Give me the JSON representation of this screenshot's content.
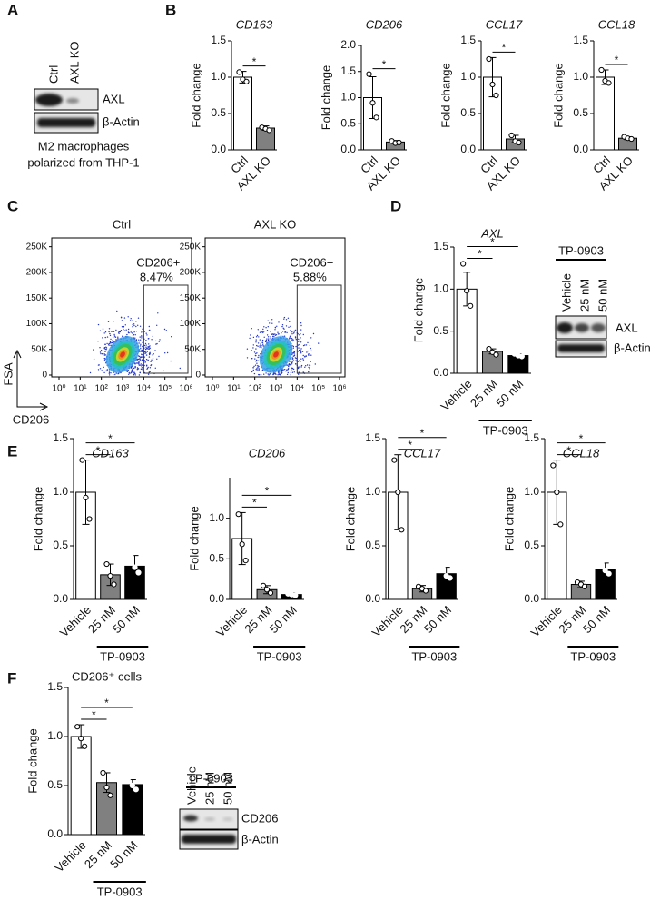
{
  "panel_labels": [
    "A",
    "B",
    "C",
    "D",
    "E",
    "F"
  ],
  "blot_a": {
    "lanes": [
      "Ctrl",
      "AXL KO"
    ],
    "bands": [
      "AXL",
      "β-Actin"
    ],
    "caption": [
      "M2 macrophages",
      "polarized from THP-1"
    ]
  },
  "flow": {
    "y_label": "FSA",
    "x_label": "CD206",
    "log_x": true,
    "xlim": [
      1,
      1000000
    ],
    "ylim": [
      0,
      260000
    ],
    "xticks": [
      {
        "value": 1,
        "label": "10⁰"
      },
      {
        "value": 10,
        "label": "10¹"
      },
      {
        "value": 100,
        "label": "10²"
      },
      {
        "value": 1000,
        "label": "10³"
      },
      {
        "value": 10000,
        "label": "10⁴"
      },
      {
        "value": 100000,
        "label": "10⁵"
      },
      {
        "value": 1000000,
        "label": "10⁶"
      }
    ],
    "yticks": [
      0,
      {
        "value": 50000,
        "label": "50K"
      },
      {
        "value": 100000,
        "label": "100K"
      },
      {
        "value": 150000,
        "label": "150K"
      },
      {
        "value": 200000,
        "label": "200K"
      },
      {
        "value": 250000,
        "label": "250K"
      }
    ],
    "plots": [
      {
        "title": "Ctrl",
        "gate": "CD206+",
        "percent": "8.47%"
      },
      {
        "title": "AXL KO",
        "gate": "CD206+",
        "percent": "5.88%"
      }
    ]
  },
  "blot_d": {
    "treatment": "TP-0903",
    "lanes": [
      "Vehicle",
      "25 nM",
      "50 nM"
    ],
    "bands": [
      "AXL",
      "β-Actin"
    ]
  },
  "blot_f": {
    "treatment": "TP-0903",
    "lanes": [
      "Vehicle",
      "25 nM",
      "50 nM"
    ],
    "bands": [
      "CD206",
      "β-Actin"
    ]
  },
  "chart_data": [
    {
      "type": "bar",
      "title": "CD163",
      "italic_title": true,
      "ylabel": "Fold change",
      "categories": [
        "Ctrl",
        "AXL KO"
      ],
      "values": [
        1.0,
        0.3
      ],
      "errors": [
        0.08,
        0.03
      ],
      "points": [
        [
          1.07,
          0.97,
          0.94
        ],
        [
          0.31,
          0.29,
          0.27
        ]
      ],
      "colors": [
        "#ffffff",
        "#808080"
      ],
      "ylim": [
        0,
        1.5
      ],
      "yticks": [
        {
          "value": 0,
          "label": "0.0"
        },
        0.5,
        {
          "value": 1,
          "label": "1.0"
        },
        1.5
      ],
      "significance": [
        "*"
      ]
    },
    {
      "type": "bar",
      "title": "CD206",
      "italic_title": true,
      "ylabel": "Fold change",
      "categories": [
        "Ctrl",
        "AXL KO"
      ],
      "values": [
        1.0,
        0.15
      ],
      "errors": [
        0.4,
        0.03
      ],
      "points": [
        [
          1.45,
          0.9,
          0.62
        ],
        [
          0.17,
          0.13,
          0.14
        ]
      ],
      "colors": [
        "#ffffff",
        "#808080"
      ],
      "ylim": [
        0,
        2
      ],
      "yticks": [
        {
          "value": 0,
          "label": "0.0"
        },
        0.5,
        {
          "value": 1,
          "label": "1.0"
        },
        1.5,
        {
          "value": 2,
          "label": "2.0"
        }
      ],
      "significance": [
        "*"
      ]
    },
    {
      "type": "bar",
      "title": "CCL17",
      "italic_title": true,
      "ylabel": "Fold change",
      "categories": [
        "Ctrl",
        "AXL KO"
      ],
      "values": [
        1.0,
        0.15
      ],
      "errors": [
        0.27,
        0.05
      ],
      "points": [
        [
          1.25,
          0.9,
          0.75
        ],
        [
          0.2,
          0.12,
          0.1
        ]
      ],
      "colors": [
        "#ffffff",
        "#808080"
      ],
      "ylim": [
        0,
        1.5
      ],
      "yticks": [
        {
          "value": 0,
          "label": "0.0"
        },
        0.5,
        {
          "value": 1,
          "label": "1.0"
        },
        1.5
      ],
      "significance": [
        "*"
      ]
    },
    {
      "type": "bar",
      "title": "CCL18",
      "italic_title": true,
      "ylabel": "Fold change",
      "categories": [
        "Ctrl",
        "AXL KO"
      ],
      "values": [
        1.0,
        0.16
      ],
      "errors": [
        0.1,
        0.02
      ],
      "points": [
        [
          1.1,
          0.95,
          0.92
        ],
        [
          0.18,
          0.16,
          0.15
        ]
      ],
      "colors": [
        "#ffffff",
        "#808080"
      ],
      "ylim": [
        0,
        1.5
      ],
      "yticks": [
        {
          "value": 0,
          "label": "0.0"
        },
        0.5,
        {
          "value": 1,
          "label": "1.0"
        },
        1.5
      ],
      "significance": [
        "*"
      ]
    },
    {
      "type": "bar",
      "title": "AXL",
      "italic_title": true,
      "ylabel": "Fold change",
      "categories": [
        "Vehicle",
        "25 nM",
        "50 nM"
      ],
      "group_label": "TP-0903",
      "values": [
        1.0,
        0.26,
        0.21
      ],
      "errors": [
        0.2,
        0.03,
        0.02
      ],
      "points": [
        [
          1.3,
          0.98,
          0.8
        ],
        [
          0.29,
          0.25,
          0.22
        ],
        [
          0.23,
          0.21,
          0.2
        ]
      ],
      "colors": [
        "#ffffff",
        "#808080",
        "#000000"
      ],
      "ylim": [
        0,
        1.5
      ],
      "yticks": [
        {
          "value": 0,
          "label": "0.0"
        },
        0.5,
        {
          "value": 1,
          "label": "1.0"
        },
        1.5
      ],
      "significance": [
        "*",
        "*"
      ]
    },
    {
      "type": "bar",
      "title": "CD163",
      "italic_title": true,
      "ylabel": "Fold change",
      "categories": [
        "Vehicle",
        "25 nM",
        "50 nM"
      ],
      "group_label": "TP-0903",
      "values": [
        1.0,
        0.23,
        0.31
      ],
      "errors": [
        0.3,
        0.1,
        0.1
      ],
      "points": [
        [
          1.3,
          0.95,
          0.75
        ],
        [
          0.33,
          0.22,
          0.14
        ],
        [
          0.42,
          0.3,
          0.25
        ]
      ],
      "colors": [
        "#ffffff",
        "#808080",
        "#000000"
      ],
      "ylim": [
        0,
        1.5
      ],
      "yticks": [
        {
          "value": 0,
          "label": "0.0"
        },
        0.5,
        {
          "value": 1,
          "label": "1.0"
        },
        1.5
      ],
      "significance": [
        "*",
        "*"
      ]
    },
    {
      "type": "bar",
      "title": "CD206",
      "italic_title": true,
      "ylabel": "Fold change",
      "categories": [
        "Vehicle",
        "25 nM",
        "50 nM"
      ],
      "group_label": "TP-0903",
      "values": [
        0.75,
        0.12,
        0.06
      ],
      "errors": [
        0.32,
        0.05,
        0.02
      ],
      "points": [
        [
          1.05,
          0.68,
          0.48
        ],
        [
          0.17,
          0.12,
          0.08
        ],
        [
          0.07,
          0.06,
          0.05
        ]
      ],
      "colors": [
        "#ffffff",
        "#808080",
        "#000000"
      ],
      "ylim": [
        0,
        1.5
      ],
      "yticks": [
        {
          "value": 0,
          "label": "0.0"
        },
        0.5,
        {
          "value": 1,
          "label": "1.0"
        }
      ],
      "significance": [
        "*",
        "*"
      ]
    },
    {
      "type": "bar",
      "title": "CCL17",
      "italic_title": true,
      "ylabel": "Fold change",
      "categories": [
        "Vehicle",
        "25 nM",
        "50 nM"
      ],
      "group_label": "TP-0903",
      "values": [
        1.0,
        0.1,
        0.24
      ],
      "errors": [
        0.35,
        0.03,
        0.06
      ],
      "points": [
        [
          1.3,
          1.0,
          0.65
        ],
        [
          0.12,
          0.1,
          0.08
        ],
        [
          0.3,
          0.22,
          0.2
        ]
      ],
      "colors": [
        "#ffffff",
        "#808080",
        "#000000"
      ],
      "ylim": [
        0,
        1.5
      ],
      "yticks": [
        {
          "value": 0,
          "label": "0.0"
        },
        0.5,
        {
          "value": 1,
          "label": "1.0"
        },
        1.5
      ],
      "significance": [
        "*",
        "*"
      ]
    },
    {
      "type": "bar",
      "title": "CCL18",
      "italic_title": true,
      "ylabel": "Fold change",
      "categories": [
        "Vehicle",
        "25 nM",
        "50 nM"
      ],
      "group_label": "TP-0903",
      "values": [
        1.0,
        0.14,
        0.28
      ],
      "errors": [
        0.3,
        0.03,
        0.06
      ],
      "points": [
        [
          1.25,
          1.0,
          0.7
        ],
        [
          0.16,
          0.14,
          0.12
        ],
        [
          0.34,
          0.27,
          0.24
        ]
      ],
      "colors": [
        "#ffffff",
        "#808080",
        "#000000"
      ],
      "ylim": [
        0,
        1.5
      ],
      "yticks": [
        {
          "value": 0,
          "label": "0.0"
        },
        0.5,
        {
          "value": 1,
          "label": "1.0"
        },
        1.5
      ],
      "significance": [
        "*",
        "*"
      ]
    },
    {
      "type": "bar",
      "title": "CD206⁺ cells",
      "italic_title": false,
      "ylabel": "Fold change",
      "categories": [
        "Vehicle",
        "25 nM",
        "50 nM"
      ],
      "group_label": "TP-0903",
      "values": [
        1.0,
        0.53,
        0.51
      ],
      "errors": [
        0.12,
        0.1,
        0.05
      ],
      "points": [
        [
          1.1,
          0.98,
          0.9
        ],
        [
          0.63,
          0.48,
          0.4
        ],
        [
          0.58,
          0.5,
          0.46
        ]
      ],
      "colors": [
        "#ffffff",
        "#808080",
        "#000000"
      ],
      "ylim": [
        0,
        1.5
      ],
      "yticks": [
        {
          "value": 0,
          "label": "0.0"
        },
        0.5,
        {
          "value": 1,
          "label": "1.0"
        },
        1.5
      ],
      "significance": [
        "*",
        "*"
      ]
    }
  ]
}
